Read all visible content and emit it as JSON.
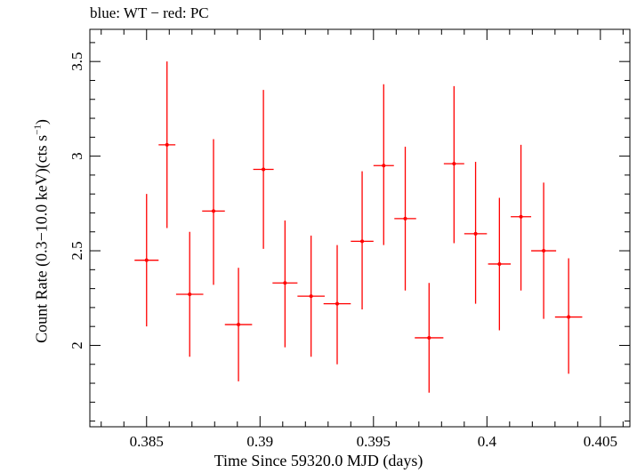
{
  "chart_data": {
    "type": "scatter",
    "title": "blue: WT − red: PC",
    "xlabel": "Time Since 59320.0 MJD (days)",
    "ylabel_main": "Count Rate (0.3−10.0 keV)(cts s",
    "ylabel_sup": "−1",
    "ylabel_close": ")",
    "xlim": [
      0.3825,
      0.4063
    ],
    "ylim": [
      1.57,
      3.67
    ],
    "xticks": [
      0.385,
      0.39,
      0.395,
      0.4,
      0.405
    ],
    "xtick_labels": [
      "0.385",
      "0.39",
      "0.395",
      "0.4",
      "0.405"
    ],
    "yticks": [
      2,
      2.5,
      3,
      3.5
    ],
    "ytick_labels": [
      "2",
      "2.5",
      "3",
      "3.5"
    ],
    "grid": false,
    "series": [
      {
        "color": "#ff0000",
        "points": [
          {
            "x": 0.385,
            "y": 2.45,
            "xerr": 0.00053,
            "ylo": 2.1,
            "yhi": 2.8
          },
          {
            "x": 0.3859,
            "y": 3.06,
            "xerr": 0.00037,
            "ylo": 2.62,
            "yhi": 3.5
          },
          {
            "x": 0.3869,
            "y": 2.27,
            "xerr": 0.0006,
            "ylo": 1.94,
            "yhi": 2.6
          },
          {
            "x": 0.38795,
            "y": 2.71,
            "xerr": 0.0005,
            "ylo": 2.32,
            "yhi": 3.09
          },
          {
            "x": 0.38905,
            "y": 2.11,
            "xerr": 0.0006,
            "ylo": 1.81,
            "yhi": 2.41
          },
          {
            "x": 0.39015,
            "y": 2.93,
            "xerr": 0.00045,
            "ylo": 2.51,
            "yhi": 3.35
          },
          {
            "x": 0.3911,
            "y": 2.33,
            "xerr": 0.00055,
            "ylo": 1.99,
            "yhi": 2.66
          },
          {
            "x": 0.39225,
            "y": 2.26,
            "xerr": 0.0006,
            "ylo": 1.94,
            "yhi": 2.58
          },
          {
            "x": 0.3934,
            "y": 2.22,
            "xerr": 0.0006,
            "ylo": 1.9,
            "yhi": 2.53
          },
          {
            "x": 0.3945,
            "y": 2.55,
            "xerr": 0.0005,
            "ylo": 2.19,
            "yhi": 2.92
          },
          {
            "x": 0.39545,
            "y": 2.95,
            "xerr": 0.00045,
            "ylo": 2.53,
            "yhi": 3.38
          },
          {
            "x": 0.3964,
            "y": 2.67,
            "xerr": 0.00048,
            "ylo": 2.29,
            "yhi": 3.05
          },
          {
            "x": 0.39745,
            "y": 2.04,
            "xerr": 0.00063,
            "ylo": 1.75,
            "yhi": 2.33
          },
          {
            "x": 0.39855,
            "y": 2.96,
            "xerr": 0.00045,
            "ylo": 2.54,
            "yhi": 3.37
          },
          {
            "x": 0.3995,
            "y": 2.59,
            "xerr": 0.0005,
            "ylo": 2.22,
            "yhi": 2.97
          },
          {
            "x": 0.40055,
            "y": 2.43,
            "xerr": 0.0005,
            "ylo": 2.08,
            "yhi": 2.78
          },
          {
            "x": 0.4015,
            "y": 2.68,
            "xerr": 0.00045,
            "ylo": 2.29,
            "yhi": 3.06
          },
          {
            "x": 0.4025,
            "y": 2.5,
            "xerr": 0.00055,
            "ylo": 2.14,
            "yhi": 2.86
          },
          {
            "x": 0.4036,
            "y": 2.15,
            "xerr": 0.0006,
            "ylo": 1.85,
            "yhi": 2.46
          }
        ]
      }
    ]
  }
}
